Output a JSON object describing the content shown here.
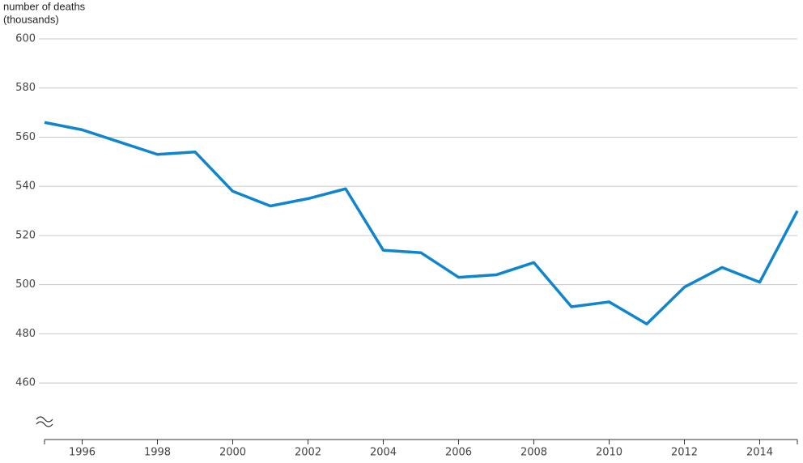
{
  "chart_data": {
    "type": "line",
    "y_label": [
      "number of deaths",
      "(thousands)"
    ],
    "x": [
      1995,
      1996,
      1997,
      1998,
      1999,
      2000,
      2001,
      2002,
      2003,
      2004,
      2005,
      2006,
      2007,
      2008,
      2009,
      2010,
      2011,
      2012,
      2013,
      2014,
      2015
    ],
    "series": [
      {
        "name": "deaths",
        "color": "#0f84cf",
        "values": [
          566,
          563,
          558,
          553,
          554,
          538,
          532,
          535,
          539,
          514,
          513,
          503,
          504,
          509,
          491,
          493,
          484,
          499,
          507,
          501,
          530
        ]
      }
    ],
    "xlim": [
      1995,
      2015
    ],
    "xticks": [
      1996,
      1998,
      2000,
      2002,
      2004,
      2006,
      2008,
      2010,
      2012,
      2014
    ],
    "ylim": [
      437,
      600
    ],
    "yticks": [
      460,
      480,
      500,
      520,
      540,
      560,
      580,
      600
    ],
    "grid": true
  }
}
